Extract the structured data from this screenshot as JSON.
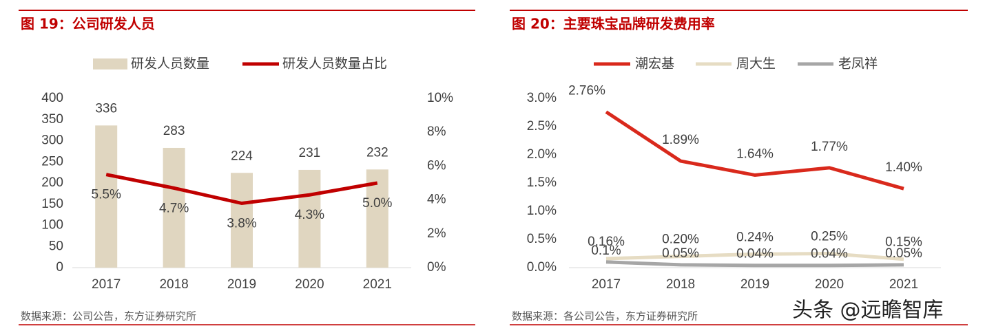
{
  "chart_data": [
    {
      "type": "bar",
      "title": "图 19：公司研发人员",
      "source": "数据来源：公司公告，东方证券研究所",
      "categories": [
        "2017",
        "2018",
        "2019",
        "2020",
        "2021"
      ],
      "series": [
        {
          "name": "研发人员数量",
          "color": "#e0d6c0",
          "values": [
            336,
            283,
            224,
            231,
            232
          ]
        },
        {
          "name": "研发人员数量占比",
          "color": "#c00000",
          "axis": "y2",
          "type": "line",
          "values": [
            5.5,
            4.7,
            3.8,
            4.3,
            5.0
          ],
          "value_labels": [
            "5.5%",
            "4.7%",
            "3.8%",
            "4.3%",
            "5.0%"
          ]
        }
      ],
      "ylim": [
        0,
        400
      ],
      "yticks": [
        0,
        50,
        100,
        150,
        200,
        250,
        300,
        350,
        400
      ],
      "y2lim": [
        0,
        10
      ],
      "y2ticks": [
        {
          "value": 0,
          "label": "0%"
        },
        {
          "value": 2,
          "label": "2%"
        },
        {
          "value": 4,
          "label": "4%"
        },
        {
          "value": 6,
          "label": "6%"
        },
        {
          "value": 8,
          "label": "8%"
        },
        {
          "value": 10,
          "label": "10%"
        }
      ]
    },
    {
      "type": "line",
      "title": "图 20：主要珠宝品牌研发费用率",
      "source": "数据来源：各公司公告，东方证券研究所",
      "categories": [
        "2017",
        "2018",
        "2019",
        "2020",
        "2021"
      ],
      "series": [
        {
          "name": "潮宏基",
          "color": "#d9291c",
          "values": [
            2.76,
            1.89,
            1.64,
            1.77,
            1.4
          ],
          "value_labels": [
            "2.76%",
            "1.89%",
            "1.64%",
            "1.77%",
            "1.40%"
          ]
        },
        {
          "name": "周大生",
          "color": "#e6dcc3",
          "values": [
            0.16,
            0.2,
            0.24,
            0.25,
            0.15
          ],
          "value_labels": [
            "0.16%",
            "0.20%",
            "0.24%",
            "0.25%",
            "0.15%"
          ]
        },
        {
          "name": "老凤祥",
          "color": "#a6a6a6",
          "values": [
            0.1,
            0.05,
            0.04,
            0.04,
            0.05
          ],
          "value_labels": [
            "0.1%",
            "0.05%",
            "0.04%",
            "0.04%",
            "0.05%"
          ]
        }
      ],
      "ylim": [
        0,
        3.0
      ],
      "yticks": [
        {
          "value": 0,
          "label": "0.0%"
        },
        {
          "value": 0.5,
          "label": "0.5%"
        },
        {
          "value": 1.0,
          "label": "1.0%"
        },
        {
          "value": 1.5,
          "label": "1.5%"
        },
        {
          "value": 2.0,
          "label": "2.0%"
        },
        {
          "value": 2.5,
          "label": "2.5%"
        },
        {
          "value": 3.0,
          "label": "3.0%"
        }
      ]
    }
  ],
  "watermark": "头条 @远瞻智库"
}
